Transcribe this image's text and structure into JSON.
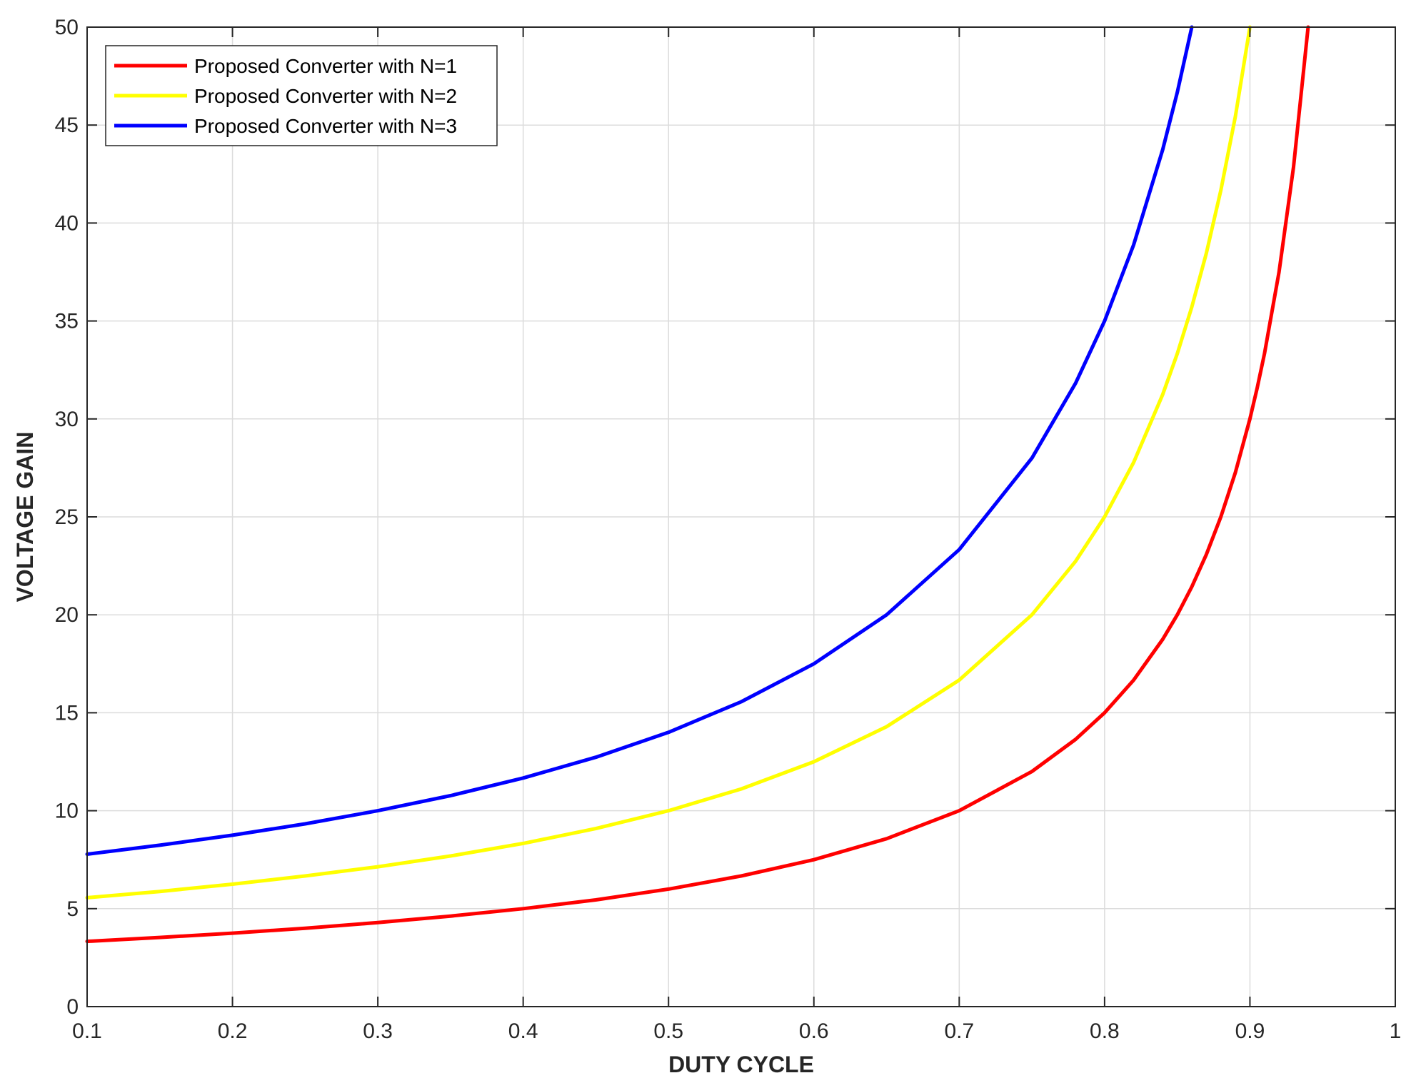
{
  "chart_data": {
    "type": "line",
    "title": "",
    "xlabel": "DUTY CYCLE",
    "ylabel": "VOLTAGE GAIN",
    "xlim": [
      0.1,
      1
    ],
    "ylim": [
      0,
      50
    ],
    "xticks": [
      "0.1",
      "0.2",
      "0.3",
      "0.4",
      "0.5",
      "0.6",
      "0.7",
      "0.8",
      "0.9",
      "1"
    ],
    "yticks": [
      "0",
      "5",
      "10",
      "15",
      "20",
      "25",
      "30",
      "35",
      "40",
      "45",
      "50"
    ],
    "grid": true,
    "legend_position": "top-left",
    "x": [
      0.1,
      0.15,
      0.2,
      0.25,
      0.3,
      0.35,
      0.4,
      0.45,
      0.5,
      0.55,
      0.6,
      0.65,
      0.7,
      0.75,
      0.78,
      0.8,
      0.82,
      0.84,
      0.85,
      0.86,
      0.87,
      0.88,
      0.89,
      0.9,
      0.905,
      0.91,
      0.92,
      0.93,
      0.94,
      0.95
    ],
    "series": [
      {
        "name": "Proposed Converter with N=1",
        "color": "#ff0000",
        "values": [
          3.33,
          3.53,
          3.75,
          4.0,
          4.29,
          4.62,
          5.0,
          5.45,
          6.0,
          6.67,
          7.5,
          8.57,
          10.0,
          12.0,
          13.64,
          15.0,
          16.67,
          18.75,
          20.0,
          21.43,
          23.08,
          25.0,
          27.27,
          30.0,
          31.58,
          33.33,
          37.5,
          42.86,
          50.0,
          null
        ]
      },
      {
        "name": "Proposed Converter with N=2",
        "color": "#ffff00",
        "values": [
          5.56,
          5.88,
          6.25,
          6.67,
          7.14,
          7.69,
          8.33,
          9.09,
          10.0,
          11.11,
          12.5,
          14.29,
          16.67,
          20.0,
          22.73,
          25.0,
          27.78,
          31.25,
          33.33,
          35.71,
          38.46,
          41.67,
          45.45,
          50.0,
          null,
          null,
          null,
          null,
          null,
          null
        ]
      },
      {
        "name": "Proposed Converter with N=3",
        "color": "#0000ff",
        "values": [
          7.78,
          8.24,
          8.75,
          9.33,
          10.0,
          10.77,
          11.67,
          12.73,
          14.0,
          15.56,
          17.5,
          20.0,
          23.33,
          28.0,
          31.82,
          35.0,
          38.89,
          43.75,
          46.67,
          50.0,
          null,
          null,
          null,
          null,
          null,
          null,
          null,
          null,
          null,
          null
        ]
      }
    ]
  }
}
